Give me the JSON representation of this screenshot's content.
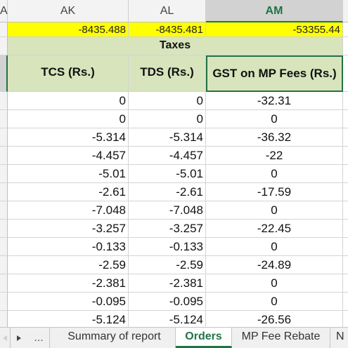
{
  "columns": {
    "left_partial": "A",
    "ak": "AK",
    "al": "AL",
    "am": "AM"
  },
  "totals": {
    "ak": "-8435.488",
    "al": "-8435.481",
    "am": "-53355.44"
  },
  "group_header": "Taxes",
  "headers": {
    "tcs": "TCS (Rs.)",
    "tds": "TDS (Rs.)",
    "gst": "GST on MP Fees (Rs.)"
  },
  "rows": [
    {
      "tcs": "0",
      "tds": "0",
      "gst": "-32.31"
    },
    {
      "tcs": "0",
      "tds": "0",
      "gst": "0"
    },
    {
      "tcs": "-5.314",
      "tds": "-5.314",
      "gst": "-36.32"
    },
    {
      "tcs": "-4.457",
      "tds": "-4.457",
      "gst": "-22"
    },
    {
      "tcs": "-5.01",
      "tds": "-5.01",
      "gst": "0"
    },
    {
      "tcs": "-2.61",
      "tds": "-2.61",
      "gst": "-17.59"
    },
    {
      "tcs": "-7.048",
      "tds": "-7.048",
      "gst": "0"
    },
    {
      "tcs": "-3.257",
      "tds": "-3.257",
      "gst": "-22.45"
    },
    {
      "tcs": "-0.133",
      "tds": "-0.133",
      "gst": "0"
    },
    {
      "tcs": "-2.59",
      "tds": "-2.59",
      "gst": "-24.89"
    },
    {
      "tcs": "-2.381",
      "tds": "-2.381",
      "gst": "0"
    },
    {
      "tcs": "-0.095",
      "tds": "-0.095",
      "gst": "0"
    },
    {
      "tcs": "-5.124",
      "tds": "-5.124",
      "gst": "-26.56"
    }
  ],
  "tabbar": {
    "prev_icon": "triangle-left",
    "next_icon": "triangle-right",
    "more": "...",
    "tabs": [
      "Summary of report",
      "Orders",
      "MP Fee Rebate",
      "N"
    ],
    "active_tab": "Orders",
    "accent_color": "#217346"
  }
}
